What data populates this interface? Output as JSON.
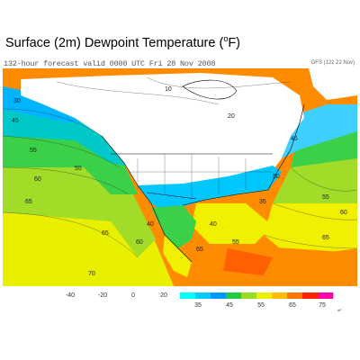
{
  "title": {
    "prefix": "Surface (2m) Dewpoint Temperature (",
    "degree": "o",
    "suffix": "F)"
  },
  "subtitle": "132-hour forecast valid 0000 UTC Fri 28 Nov 2008",
  "model_label": "GFS (12z 22 Nov)",
  "colors": {
    "ocean_cold": "#00c8c8",
    "ocean_cool": "#00b4ff",
    "ocean_cyan": "#40d0ff",
    "green": "#3cd048",
    "yellowgreen": "#a0dc28",
    "yellow": "#f0f000",
    "orange": "#ff8c00",
    "deep_orange": "#ff6000",
    "land_dry": "#ffffff"
  },
  "contour_labels": [
    "30",
    "45",
    "55",
    "60",
    "55",
    "65",
    "65",
    "70",
    "45",
    "55",
    "65",
    "65",
    "60",
    "40",
    "40",
    "50",
    "20",
    "10",
    "35",
    "60",
    "55"
  ],
  "color_scale": {
    "tick_labels": [
      "-40",
      "-20",
      "0",
      "20",
      "35",
      "45",
      "55",
      "65",
      "75"
    ],
    "unit": "oF",
    "colors": [
      "#00ffff",
      "#00ccff",
      "#0099ff",
      "#22cc44",
      "#99dd22",
      "#eeee00",
      "#ffbb00",
      "#ff7700",
      "#ff2200",
      "#ff00aa"
    ]
  }
}
